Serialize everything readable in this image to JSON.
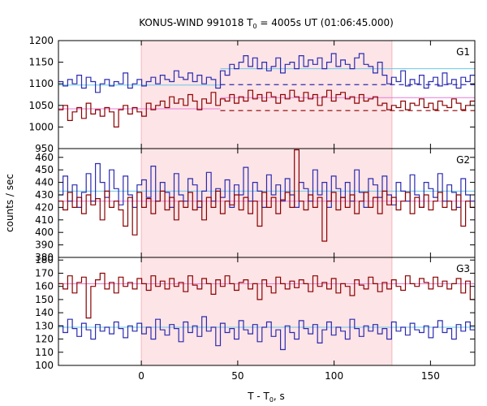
{
  "chart_data": {
    "type": "line",
    "title": "KONUS-WIND 991018 T",
    "title_sub": "0",
    "title_rest": " = 4005s UT (01:06:45.000)",
    "xlabel": "T - T",
    "xlabel_sub": "0",
    "xlabel_rest": ", s",
    "ylabel": "counts / sec",
    "xlim": [
      -43,
      173
    ],
    "x_ticks": [
      0,
      50,
      100,
      150
    ],
    "highlight_interval": [
      0,
      130
    ],
    "colors": {
      "red": "#8b0000",
      "blue": "#2b2bb0",
      "cyan": "#66c8e8",
      "pink": "#e87ad8",
      "shade": "#fde4e6"
    },
    "panels": [
      {
        "name": "G1",
        "ylim": [
          950,
          1200
        ],
        "y_ticks": [
          950,
          1000,
          1050,
          1100,
          1150,
          1200
        ],
        "y_tick_labels": [
          "950",
          "1000",
          "1050",
          "1100",
          "1150",
          "1200"
        ],
        "blue_levels": [
          {
            "x0": -43,
            "x1": 41,
            "y": 1097
          },
          {
            "x0": 41,
            "x1": 173,
            "y": 1135
          }
        ],
        "red_levels": [
          {
            "x0": -43,
            "x1": 41,
            "y": 1042
          },
          {
            "x0": 41,
            "x1": 173,
            "y": 1068
          }
        ],
        "dashed_levels": [
          {
            "y": 1098,
            "color": "blue"
          },
          {
            "y": 1038,
            "color": "red"
          }
        ],
        "series": [
          {
            "color": "blue",
            "values": [
              1105,
              1095,
              1110,
              1100,
              1120,
              1090,
              1115,
              1105,
              1080,
              1100,
              1110,
              1095,
              1105,
              1100,
              1125,
              1090,
              1100,
              1110,
              1095,
              1105,
              1115,
              1100,
              1120,
              1110,
              1105,
              1130,
              1115,
              1110,
              1125,
              1105,
              1120,
              1100,
              1115,
              1110,
              1090,
              1130,
              1120,
              1145,
              1135,
              1150,
              1165,
              1140,
              1160,
              1135,
              1150,
              1130,
              1140,
              1160,
              1125,
              1145,
              1150,
              1135,
              1165,
              1140,
              1155,
              1145,
              1160,
              1135,
              1150,
              1170,
              1140,
              1155,
              1145,
              1135,
              1160,
              1170,
              1145,
              1140,
              1125,
              1150,
              1120,
              1100,
              1115,
              1105,
              1130,
              1095,
              1110,
              1100,
              1120,
              1090,
              1105,
              1115,
              1095,
              1125,
              1100,
              1110,
              1090,
              1115,
              1105,
              1120
            ]
          },
          {
            "color": "red",
            "values": [
              1040,
              1050,
              1015,
              1035,
              1045,
              1020,
              1055,
              1030,
              1040,
              1025,
              1045,
              1035,
              1000,
              1040,
              1050,
              1030,
              1045,
              1035,
              1025,
              1055,
              1040,
              1050,
              1060,
              1045,
              1070,
              1055,
              1065,
              1050,
              1075,
              1060,
              1040,
              1065,
              1055,
              1080,
              1050,
              1065,
              1060,
              1075,
              1055,
              1070,
              1060,
              1085,
              1065,
              1075,
              1060,
              1080,
              1070,
              1055,
              1075,
              1065,
              1085,
              1070,
              1060,
              1080,
              1065,
              1075,
              1050,
              1070,
              1085,
              1060,
              1075,
              1080,
              1065,
              1070,
              1055,
              1075,
              1060,
              1065,
              1070,
              1050,
              1055,
              1040,
              1050,
              1045,
              1060,
              1040,
              1055,
              1050,
              1065,
              1045,
              1055,
              1040,
              1060,
              1050,
              1045,
              1065,
              1055,
              1040,
              1050,
              1060
            ]
          }
        ]
      },
      {
        "name": "G2",
        "ylim": [
          380,
          467
        ],
        "y_ticks": [
          380,
          390,
          400,
          410,
          420,
          430,
          440,
          450,
          460
        ],
        "y_tick_labels": [
          "380",
          "390",
          "400",
          "410",
          "420",
          "430",
          "440",
          "450",
          "460"
        ],
        "blue_levels": [
          {
            "x0": -43,
            "x1": 173,
            "y": 433
          }
        ],
        "red_levels": [
          {
            "x0": -43,
            "x1": 173,
            "y": 425
          }
        ],
        "dashed_levels": [],
        "series": [
          {
            "color": "blue",
            "values": [
              430,
              445,
              425,
              438,
              420,
              432,
              447,
              425,
              455,
              440,
              428,
              450,
              435,
              422,
              445,
              430,
              420,
              438,
              442,
              428,
              453,
              425,
              440,
              432,
              420,
              447,
              430,
              425,
              443,
              438,
              420,
              433,
              448,
              425,
              435,
              428,
              442,
              420,
              438,
              430,
              452,
              425,
              440,
              433,
              420,
              446,
              430,
              438,
              425,
              443,
              430,
              420,
              440,
              435,
              425,
              450,
              430,
              440,
              420,
              445,
              435,
              428,
              440,
              425,
              450,
              432,
              420,
              443,
              438,
              428,
              445,
              430,
              422,
              440,
              433,
              425,
              446,
              430,
              420,
              440,
              435,
              428,
              447,
              425,
              438,
              432,
              420,
              443,
              430,
              425
            ]
          },
          {
            "color": "red",
            "values": [
              425,
              418,
              432,
              420,
              428,
              415,
              430,
              422,
              427,
              410,
              433,
              420,
              425,
              418,
              405,
              428,
              398,
              432,
              420,
              427,
              415,
              425,
              433,
              418,
              428,
              410,
              425,
              420,
              432,
              418,
              425,
              410,
              428,
              420,
              433,
              415,
              425,
              422,
              430,
              418,
              428,
              415,
              425,
              405,
              432,
              420,
              428,
              415,
              426,
              432,
              420,
              466,
              425,
              418,
              430,
              420,
              428,
              393,
              425,
              432,
              418,
              428,
              420,
              430,
              415,
              425,
              432,
              420,
              428,
              415,
              433,
              422,
              428,
              418,
              425,
              432,
              415,
              428,
              420,
              430,
              418,
              425,
              432,
              420,
              425,
              418,
              430,
              405,
              425,
              420
            ]
          }
        ]
      },
      {
        "name": "G3",
        "ylim": [
          100,
          182
        ],
        "y_ticks": [
          100,
          110,
          120,
          130,
          140,
          150,
          160,
          170,
          180
        ],
        "y_tick_labels": [
          "100",
          "110",
          "120",
          "130",
          "140",
          "150",
          "160",
          "170",
          "180"
        ],
        "blue_levels": [
          {
            "x0": -43,
            "x1": 173,
            "y": 129
          }
        ],
        "red_levels": [
          {
            "x0": -43,
            "x1": 173,
            "y": 162
          }
        ],
        "dashed_levels": [],
        "series": [
          {
            "color": "blue",
            "values": [
              130,
              125,
              135,
              128,
              122,
              132,
              127,
              120,
              131,
              126,
              129,
              124,
              133,
              128,
              121,
              130,
              126,
              132,
              124,
              129,
              120,
              135,
              127,
              123,
              131,
              128,
              118,
              133,
              125,
              130,
              122,
              137,
              126,
              129,
              115,
              132,
              125,
              128,
              120,
              134,
              127,
              124,
              131,
              118,
              129,
              133,
              122,
              127,
              112,
              130,
              125,
              120,
              134,
              128,
              124,
              131,
              117,
              127,
              133,
              123,
              129,
              126,
              120,
              135,
              128,
              122,
              130,
              126,
              131,
              124,
              128,
              120,
              133,
              126,
              129,
              123,
              132,
              127,
              125,
              130,
              121,
              129,
              134,
              125,
              128,
              120,
              131,
              126,
              133,
              127
            ]
          },
          {
            "color": "red",
            "values": [
              162,
              158,
              168,
              155,
              163,
              167,
              136,
              160,
              165,
              170,
              158,
              163,
              155,
              167,
              160,
              163,
              158,
              166,
              162,
              157,
              168,
              160,
              164,
              158,
              166,
              160,
              163,
              156,
              168,
              161,
              158,
              166,
              162,
              154,
              165,
              160,
              168,
              162,
              157,
              163,
              165,
              158,
              162,
              150,
              165,
              160,
              155,
              167,
              162,
              158,
              164,
              159,
              165,
              162,
              156,
              168,
              160,
              163,
              158,
              166,
              155,
              162,
              160,
              153,
              165,
              161,
              158,
              167,
              162,
              156,
              163,
              158,
              165,
              160,
              157,
              168,
              162,
              160,
              166,
              163,
              158,
              167,
              160,
              164,
              158,
              162,
              166,
              155,
              164,
              150
            ]
          }
        ]
      }
    ]
  }
}
